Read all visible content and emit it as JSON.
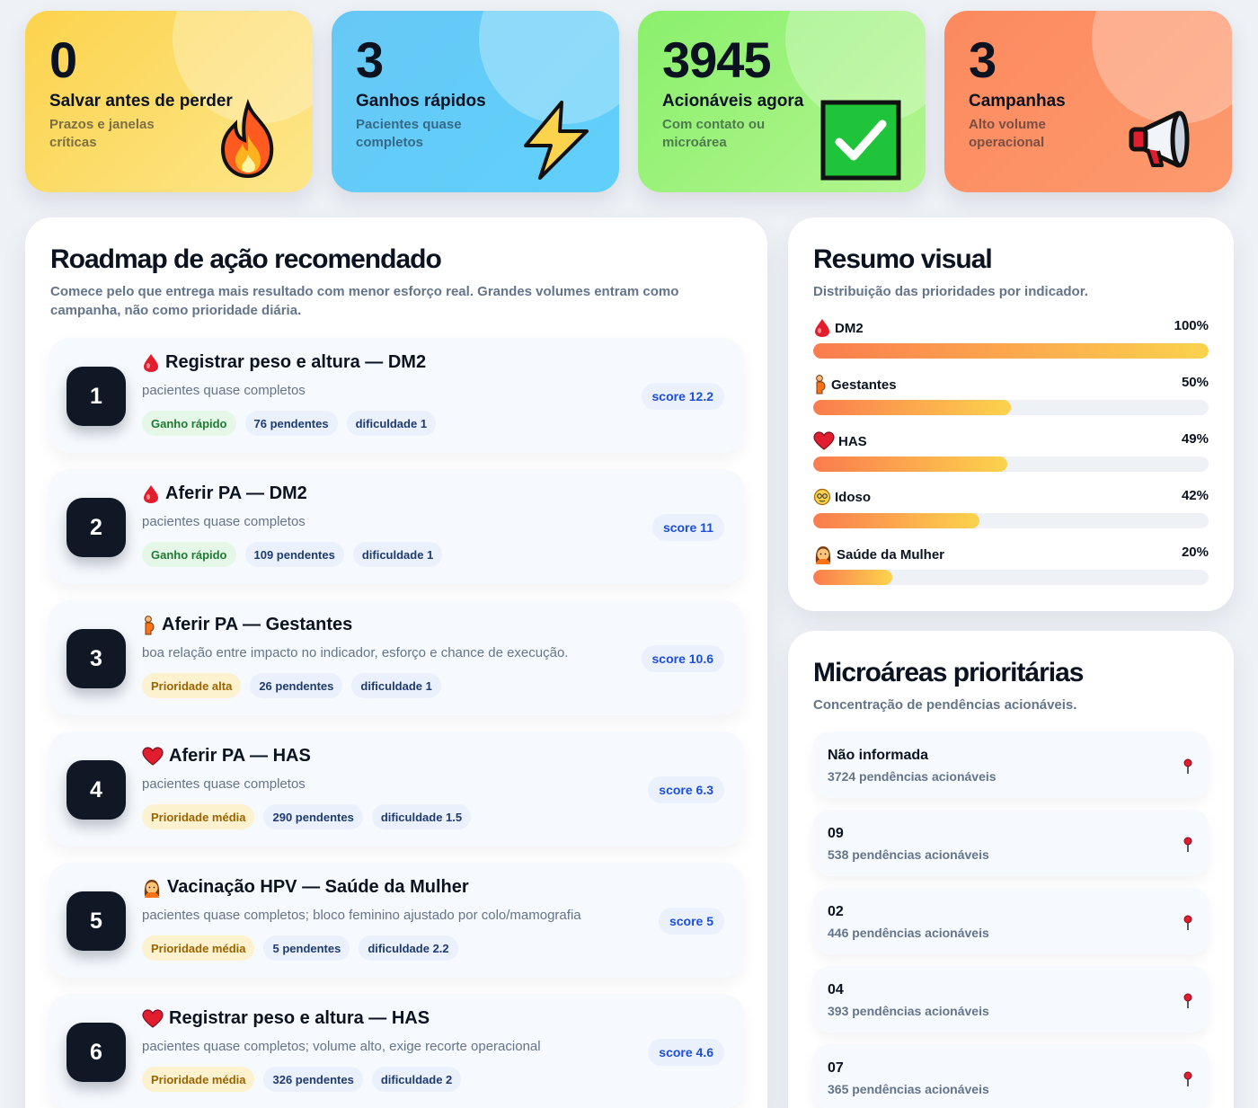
{
  "kpis": [
    {
      "value": "0",
      "title": "Salvar antes de perder",
      "subtitle": "Prazos e janelas críticas",
      "icon": "fire-icon"
    },
    {
      "value": "3",
      "title": "Ganhos rápidos",
      "subtitle": "Pacientes quase completos",
      "icon": "lightning-icon"
    },
    {
      "value": "3945",
      "title": "Acionáveis agora",
      "subtitle": "Com contato ou microárea",
      "icon": "check-box-icon"
    },
    {
      "value": "3",
      "title": "Campanhas",
      "subtitle": "Alto volume operacional",
      "icon": "megaphone-icon"
    }
  ],
  "roadmap": {
    "title": "Roadmap de ação recomendado",
    "subtitle": "Comece pelo que entrega mais resultado com menor esforço real. Grandes volumes entram como campanha, não como prioridade diária.",
    "items": [
      {
        "num": "1",
        "icon": "blood-drop-icon",
        "title": "Registrar peso e altura — DM2",
        "desc": "pacientes quase completos",
        "tags": [
          "Ganho rápido",
          "76 pendentes",
          "dificuldade 1"
        ],
        "tag_types": [
          "green",
          "blue",
          "blue"
        ],
        "score": "score 12.2"
      },
      {
        "num": "2",
        "icon": "blood-drop-icon",
        "title": "Aferir PA — DM2",
        "desc": "pacientes quase completos",
        "tags": [
          "Ganho rápido",
          "109 pendentes",
          "dificuldade 1"
        ],
        "tag_types": [
          "green",
          "blue",
          "blue"
        ],
        "score": "score 11"
      },
      {
        "num": "3",
        "icon": "pregnant-woman-icon",
        "title": "Aferir PA — Gestantes",
        "desc": "boa relação entre impacto no indicador, esforço e chance de execução.",
        "tags": [
          "Prioridade alta",
          "26 pendentes",
          "dificuldade 1"
        ],
        "tag_types": [
          "amber",
          "blue",
          "blue"
        ],
        "score": "score 10.6"
      },
      {
        "num": "4",
        "icon": "heart-icon",
        "title": "Aferir PA — HAS",
        "desc": "pacientes quase completos",
        "tags": [
          "Prioridade média",
          "290 pendentes",
          "dificuldade 1.5"
        ],
        "tag_types": [
          "amber",
          "blue",
          "blue"
        ],
        "score": "score 6.3"
      },
      {
        "num": "5",
        "icon": "woman-icon",
        "title": "Vacinação HPV — Saúde da Mulher",
        "desc": "pacientes quase completos; bloco feminino ajustado por colo/mamografia",
        "tags": [
          "Prioridade média",
          "5 pendentes",
          "dificuldade 2.2"
        ],
        "tag_types": [
          "amber",
          "blue",
          "blue"
        ],
        "score": "score 5"
      },
      {
        "num": "6",
        "icon": "heart-icon",
        "title": "Registrar peso e altura — HAS",
        "desc": "pacientes quase completos; volume alto, exige recorte operacional",
        "tags": [
          "Prioridade média",
          "326 pendentes",
          "dificuldade 2"
        ],
        "tag_types": [
          "amber",
          "blue",
          "blue"
        ],
        "score": "score 4.6"
      }
    ]
  },
  "resumo": {
    "title": "Resumo visual",
    "subtitle": "Distribuição das prioridades por indicador.",
    "bars": [
      {
        "label": "DM2",
        "icon": "blood-drop-icon",
        "pct_text": "100%",
        "value": 100
      },
      {
        "label": "Gestantes",
        "icon": "pregnant-woman-icon",
        "pct_text": "50%",
        "value": 50
      },
      {
        "label": "HAS",
        "icon": "heart-icon",
        "pct_text": "49%",
        "value": 49
      },
      {
        "label": "Idoso",
        "icon": "elderly-face-icon",
        "pct_text": "42%",
        "value": 42
      },
      {
        "label": "Saúde da Mulher",
        "icon": "woman-icon",
        "pct_text": "20%",
        "value": 20
      }
    ]
  },
  "micro": {
    "title": "Microáreas prioritárias",
    "subtitle": "Concentração de pendências acionáveis.",
    "items": [
      {
        "name": "Não informada",
        "count": "3724 pendências acionáveis"
      },
      {
        "name": "09",
        "count": "538 pendências acionáveis"
      },
      {
        "name": "02",
        "count": "446 pendências acionáveis"
      },
      {
        "name": "04",
        "count": "393 pendências acionáveis"
      },
      {
        "name": "07",
        "count": "365 pendências acionáveis"
      }
    ]
  },
  "colors": {
    "accent_from": "#fb7c4e",
    "accent_to": "#fcd34d",
    "score_blue": "#1d4ed8"
  }
}
